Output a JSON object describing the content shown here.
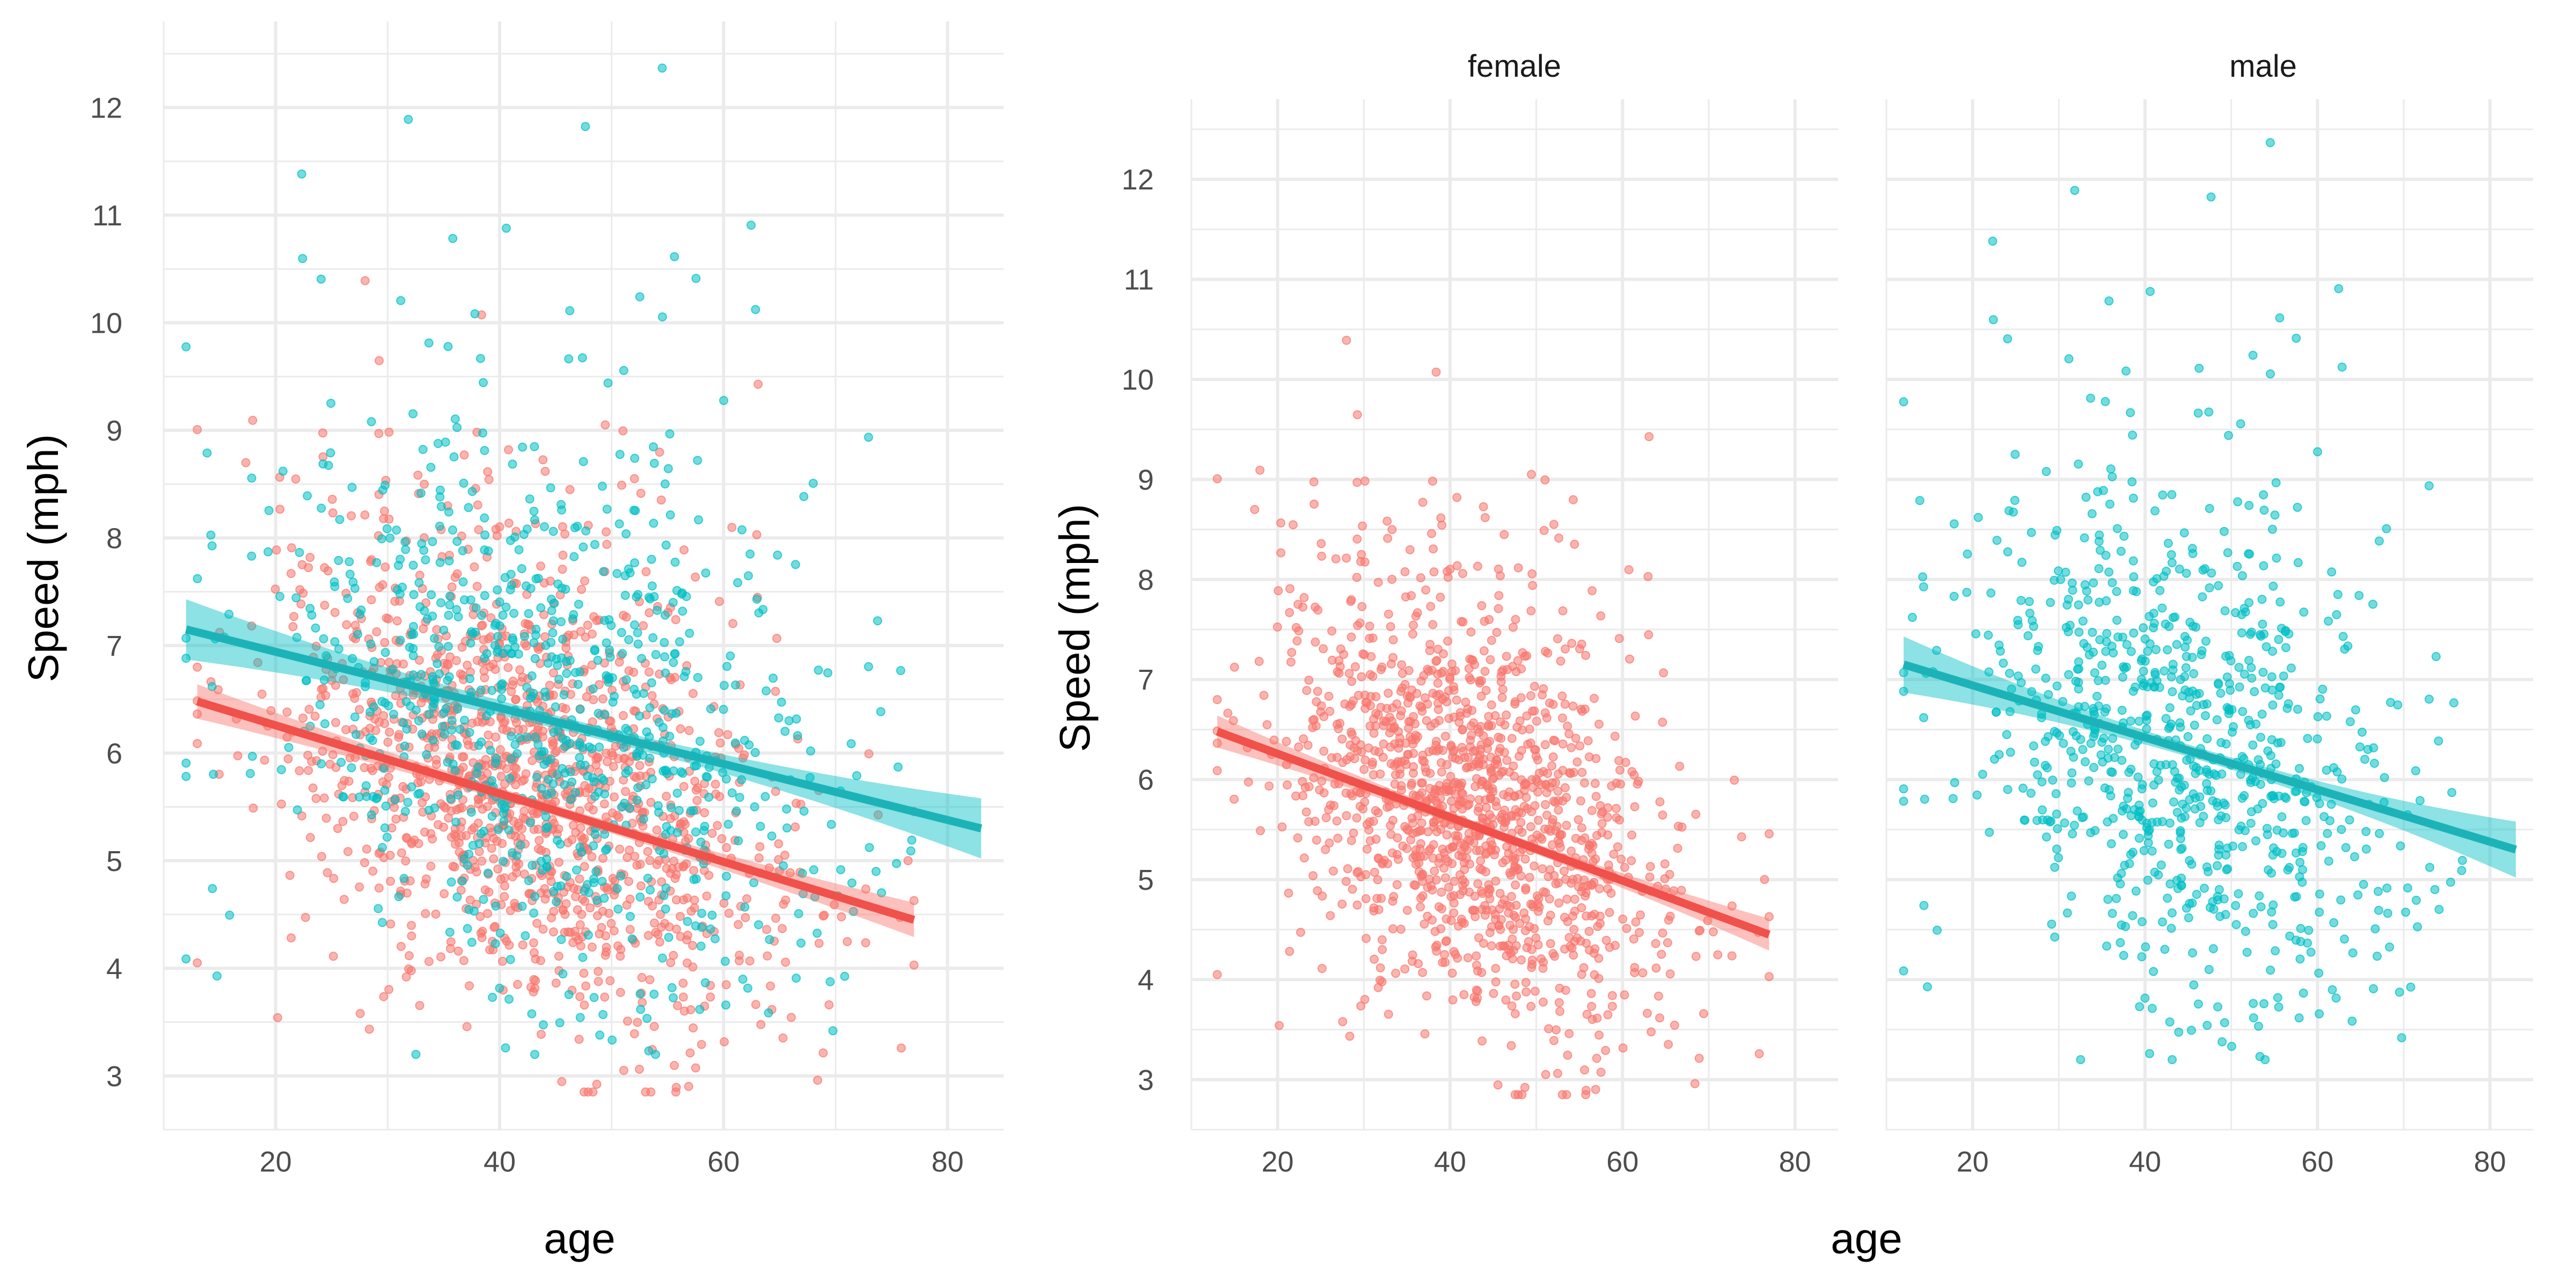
{
  "colors": {
    "female": "#F8766D",
    "male": "#00BFC4",
    "line_female": "#F0514B",
    "line_male": "#1CB3B8",
    "grid": "#EBEBEB"
  },
  "chart_data": [
    {
      "type": "scatter",
      "panel": "combined",
      "title": "",
      "xlabel": "age",
      "ylabel": "Speed (mph)",
      "xlim": [
        10,
        85
      ],
      "ylim": [
        2.5,
        12.8
      ],
      "xticks": [
        "20",
        "40",
        "60",
        "80"
      ],
      "yticks": [
        "3",
        "4",
        "5",
        "6",
        "7",
        "8",
        "9",
        "10",
        "11",
        "12"
      ],
      "series": [
        {
          "key": "female",
          "n_points": 1350,
          "trend": {
            "x": [
              13,
              77
            ],
            "y": [
              6.48,
              4.45
            ]
          }
        },
        {
          "key": "male",
          "n_points": 850,
          "trend": {
            "x": [
              12,
              83
            ],
            "y": [
              7.15,
              5.3
            ]
          }
        }
      ]
    },
    {
      "type": "scatter",
      "panel": "female",
      "title": "female",
      "xlabel": "age",
      "ylabel": "Speed (mph)",
      "xlim": [
        10,
        85
      ],
      "ylim": [
        2.5,
        12.8
      ],
      "xticks": [
        "20",
        "40",
        "60",
        "80"
      ],
      "yticks": [
        "3",
        "4",
        "5",
        "6",
        "7",
        "8",
        "9",
        "10",
        "11",
        "12"
      ],
      "series": [
        {
          "key": "female",
          "n_points": 1350,
          "trend": {
            "x": [
              13,
              77
            ],
            "y": [
              6.48,
              4.45
            ]
          }
        }
      ]
    },
    {
      "type": "scatter",
      "panel": "male",
      "title": "male",
      "xlabel": "age",
      "ylabel": "",
      "xlim": [
        10,
        85
      ],
      "ylim": [
        2.5,
        12.8
      ],
      "xticks": [
        "20",
        "40",
        "60",
        "80"
      ],
      "yticks": [],
      "series": [
        {
          "key": "male",
          "n_points": 850,
          "trend": {
            "x": [
              12,
              83
            ],
            "y": [
              7.15,
              5.3
            ]
          }
        }
      ]
    }
  ]
}
